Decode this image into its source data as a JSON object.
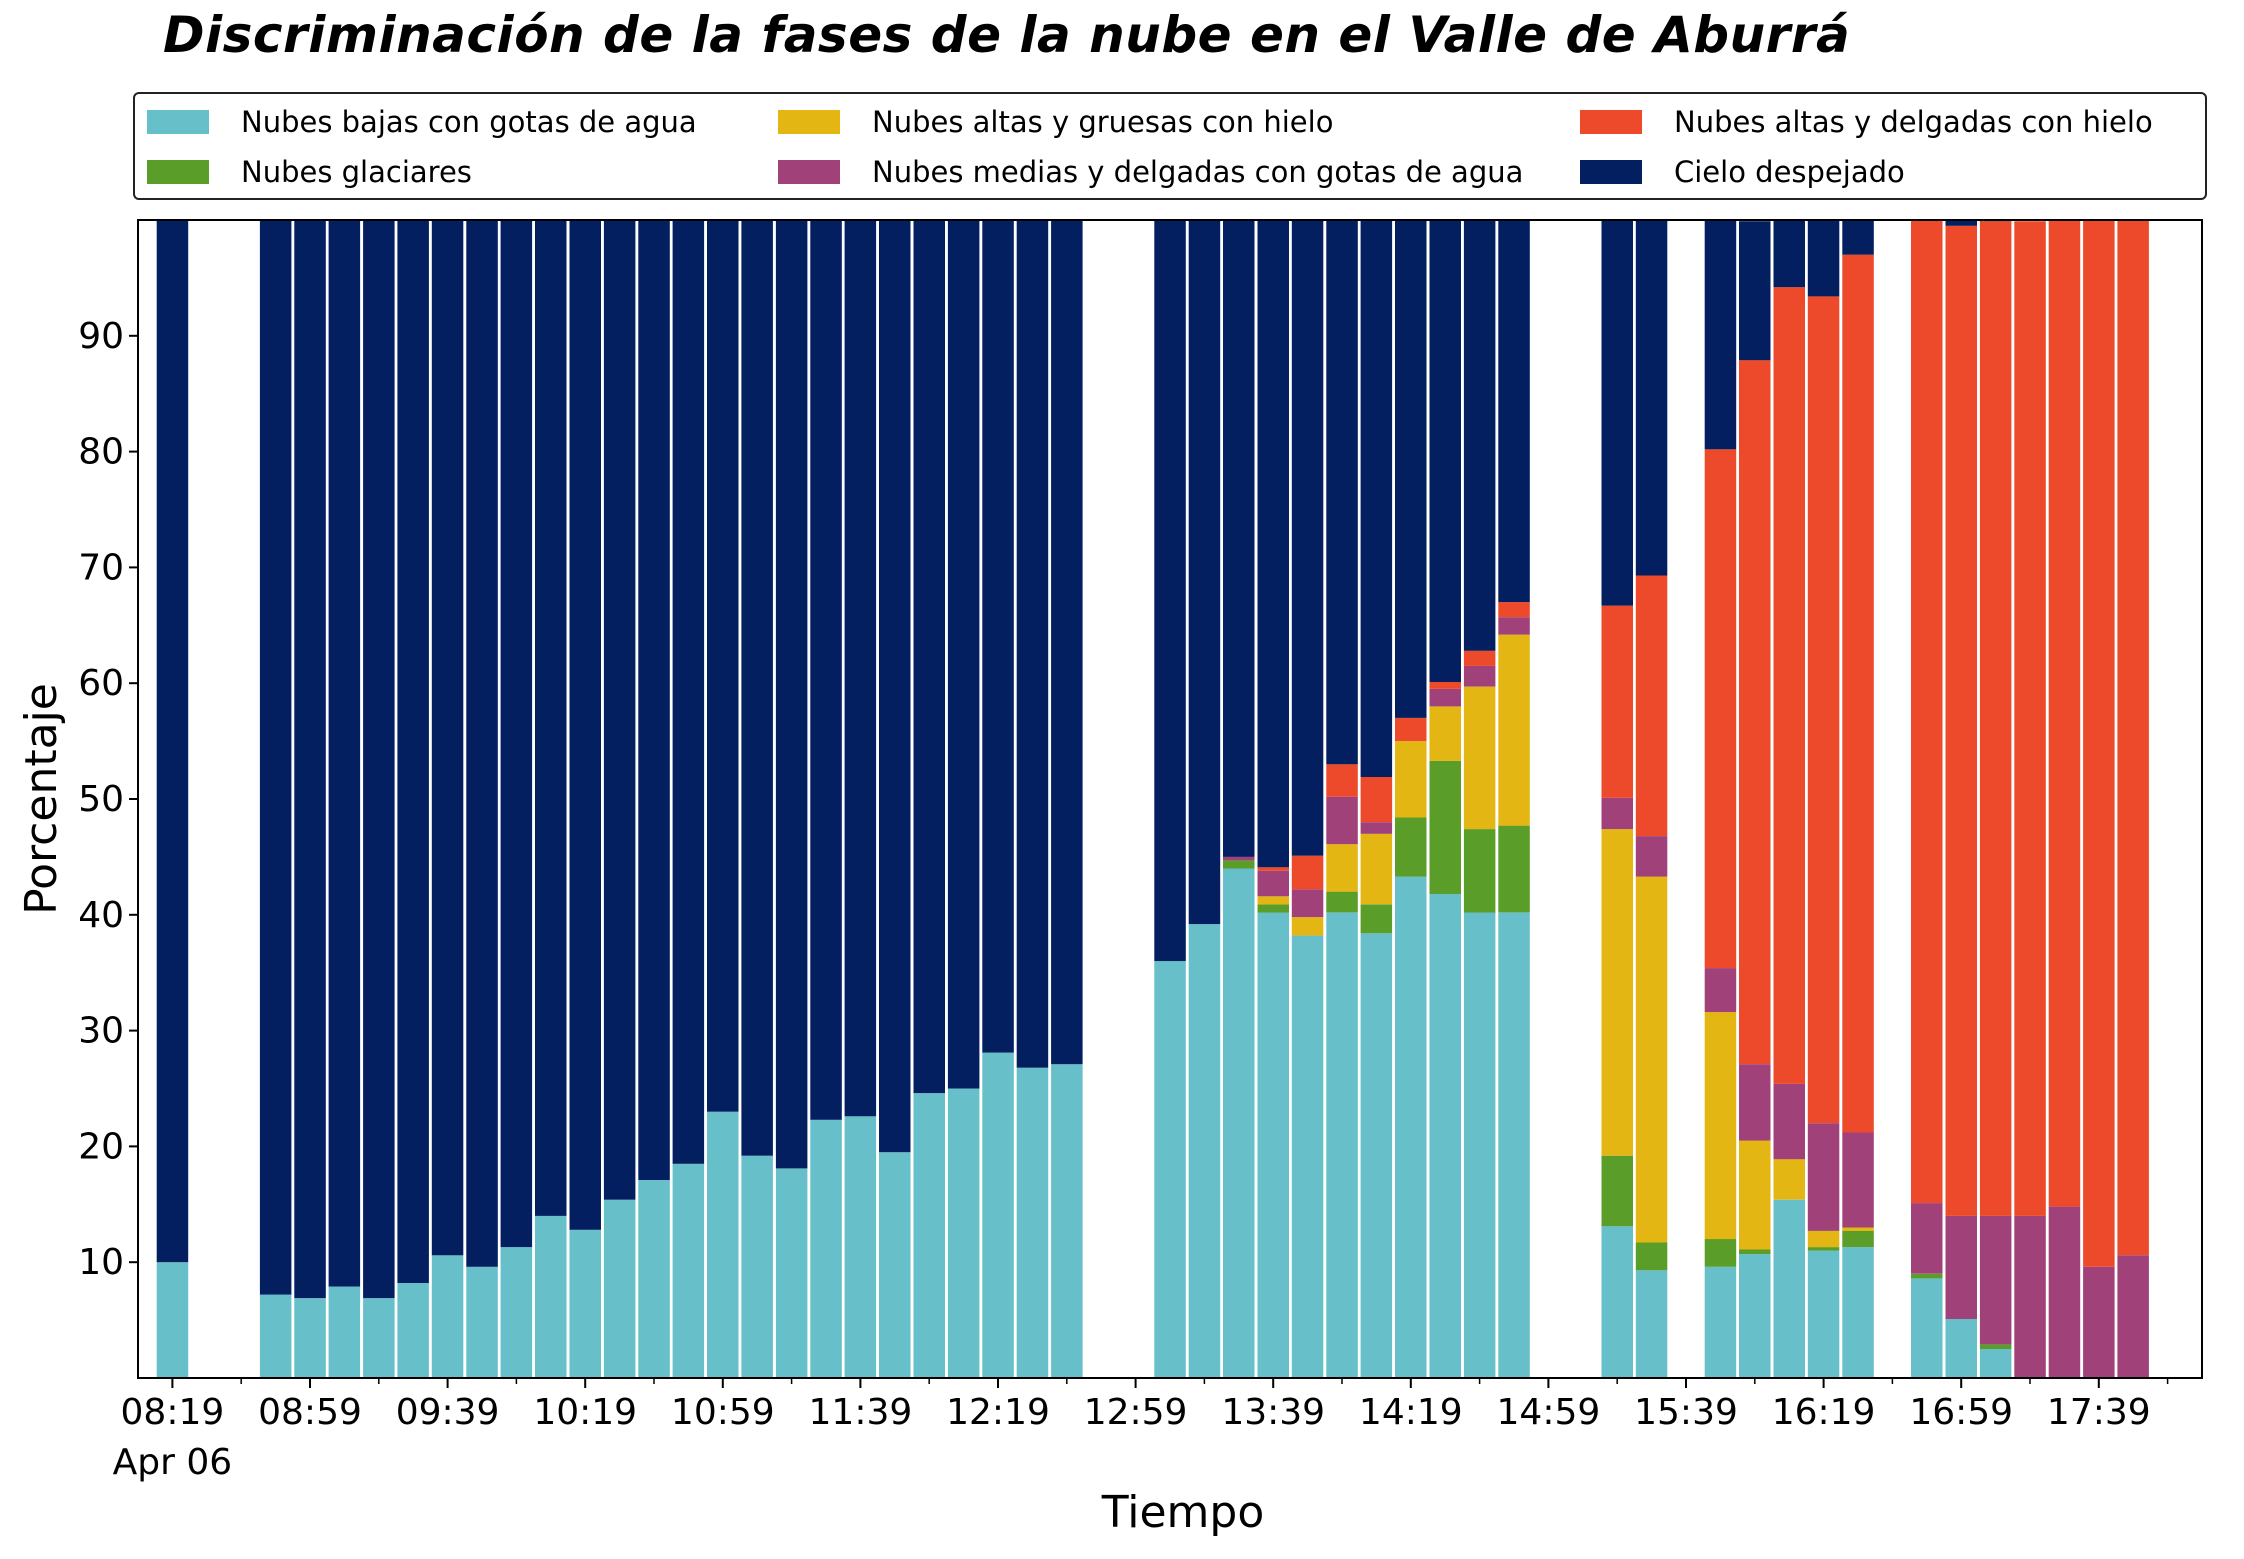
{
  "chart_data": {
    "type": "bar",
    "stacked": true,
    "title": "Discriminación de la fases de la nube en el Valle de Aburrá",
    "xlabel": "Tiempo",
    "ylabel": "Porcentaje",
    "ylim": [
      0,
      100
    ],
    "yticks": [
      10,
      20,
      30,
      40,
      50,
      60,
      70,
      80,
      90
    ],
    "xlim": [
      "08:09",
      "18:09"
    ],
    "xticks": [
      {
        "time": "08:19",
        "label": "08:19",
        "sublabel": "Apr 06"
      },
      {
        "time": "08:59",
        "label": "08:59"
      },
      {
        "time": "09:39",
        "label": "09:39"
      },
      {
        "time": "10:19",
        "label": "10:19"
      },
      {
        "time": "10:59",
        "label": "10:59"
      },
      {
        "time": "11:39",
        "label": "11:39"
      },
      {
        "time": "12:19",
        "label": "12:19"
      },
      {
        "time": "12:59",
        "label": "12:59"
      },
      {
        "time": "13:39",
        "label": "13:39"
      },
      {
        "time": "14:19",
        "label": "14:19"
      },
      {
        "time": "14:59",
        "label": "14:59"
      },
      {
        "time": "15:39",
        "label": "15:39"
      },
      {
        "time": "16:19",
        "label": "16:19"
      },
      {
        "time": "16:59",
        "label": "16:59"
      },
      {
        "time": "17:39",
        "label": "17:39"
      }
    ],
    "grid": false,
    "legend": {
      "position": "top",
      "columns": 3
    },
    "x": [
      "08:19",
      "08:49",
      "08:59",
      "09:09",
      "09:19",
      "09:29",
      "09:39",
      "09:49",
      "09:59",
      "10:09",
      "10:19",
      "10:29",
      "10:39",
      "10:49",
      "10:59",
      "11:09",
      "11:19",
      "11:29",
      "11:39",
      "11:49",
      "11:59",
      "12:09",
      "12:19",
      "12:29",
      "12:39",
      "13:09",
      "13:19",
      "13:29",
      "13:39",
      "13:49",
      "13:59",
      "14:09",
      "14:19",
      "14:29",
      "14:39",
      "14:49",
      "15:19",
      "15:29",
      "15:49",
      "15:59",
      "16:09",
      "16:19",
      "16:29",
      "16:49",
      "16:59",
      "17:09",
      "17:19",
      "17:29",
      "17:39",
      "17:49"
    ],
    "series": [
      {
        "name": "Nubes bajas con gotas de agua",
        "color": "#67bfca",
        "values": [
          10,
          7.2,
          6.9,
          7.9,
          6.9,
          8.2,
          10.6,
          9.6,
          11.3,
          14,
          12.8,
          15.4,
          17.1,
          18.5,
          23,
          19.2,
          18.1,
          22.3,
          22.6,
          19.5,
          24.6,
          25,
          28.1,
          26.8,
          27.1,
          36,
          39.2,
          44,
          40.2,
          38.2,
          40.2,
          38.4,
          43.3,
          41.8,
          40.2,
          40.2,
          13.1,
          9.3,
          9.6,
          10.7,
          15.4,
          11,
          11.3,
          8.6,
          5.1,
          2.5,
          0,
          0,
          0,
          0
        ]
      },
      {
        "name": "Nubes glaciares",
        "color": "#5b9d29",
        "values": [
          0,
          0,
          0,
          0,
          0,
          0,
          0,
          0,
          0,
          0,
          0,
          0,
          0,
          0,
          0,
          0,
          0,
          0,
          0,
          0,
          0,
          0,
          0,
          0,
          0,
          0,
          0,
          0.7,
          0.7,
          0,
          1.8,
          2.5,
          5.1,
          11.5,
          7.2,
          7.5,
          6.1,
          2.4,
          2.4,
          0.4,
          0,
          0.3,
          1.4,
          0.4,
          0,
          0.4,
          0,
          0,
          0,
          0
        ]
      },
      {
        "name": "Nubes altas y gruesas con hielo",
        "color": "#e3b613",
        "values": [
          0,
          0,
          0,
          0,
          0,
          0,
          0,
          0,
          0,
          0,
          0,
          0,
          0,
          0,
          0,
          0,
          0,
          0,
          0,
          0,
          0,
          0,
          0,
          0,
          0,
          0,
          0,
          0,
          0.7,
          1.6,
          4.1,
          6.1,
          6.6,
          4.7,
          12.3,
          16.5,
          28.2,
          31.6,
          19.6,
          9.4,
          3.5,
          1.4,
          0.3,
          0,
          0,
          0,
          0,
          0,
          0,
          0
        ]
      },
      {
        "name": "Nubes medias y delgadas con gotas de agua",
        "color": "#a0417a",
        "values": [
          0,
          0,
          0,
          0,
          0,
          0,
          0,
          0,
          0,
          0,
          0,
          0,
          0,
          0,
          0,
          0,
          0,
          0,
          0,
          0,
          0,
          0,
          0,
          0,
          0,
          0,
          0,
          0.3,
          2.2,
          2.4,
          4.1,
          1,
          0,
          1.5,
          1.8,
          1.5,
          2.7,
          3.5,
          3.8,
          6.6,
          6.5,
          9.3,
          8.2,
          6.1,
          8.9,
          11.1,
          14,
          14.8,
          9.6,
          10.6
        ]
      },
      {
        "name": "Nubes altas y delgadas con hielo",
        "color": "#ec4a2b",
        "values": [
          0,
          0,
          0,
          0,
          0,
          0,
          0,
          0,
          0,
          0,
          0,
          0,
          0,
          0,
          0,
          0,
          0,
          0,
          0,
          0,
          0,
          0,
          0,
          0,
          0,
          0,
          0,
          0,
          0.3,
          2.9,
          2.8,
          3.9,
          2,
          0.6,
          1.3,
          1.3,
          16.6,
          22.5,
          44.8,
          60.8,
          68.8,
          71.4,
          75.8,
          84.9,
          85.5,
          85.9,
          85.9,
          85.2,
          90.4,
          89.4
        ]
      },
      {
        "name": "Cielo despejado",
        "color": "#031f5f",
        "values": [
          90,
          92.8,
          93.1,
          92.1,
          93.1,
          91.8,
          89.4,
          90.4,
          88.7,
          86,
          87.2,
          84.6,
          82.9,
          81.5,
          77,
          80.8,
          81.9,
          77.7,
          77.4,
          80.5,
          75.4,
          75,
          71.9,
          73.2,
          72.9,
          64,
          60.8,
          55,
          55.9,
          54.9,
          47,
          48.1,
          43,
          39.9,
          37.2,
          33,
          33.3,
          30.7,
          19.8,
          12,
          5.8,
          6.6,
          3,
          0,
          0.5,
          0.1,
          0,
          0,
          0,
          0
        ]
      }
    ]
  }
}
